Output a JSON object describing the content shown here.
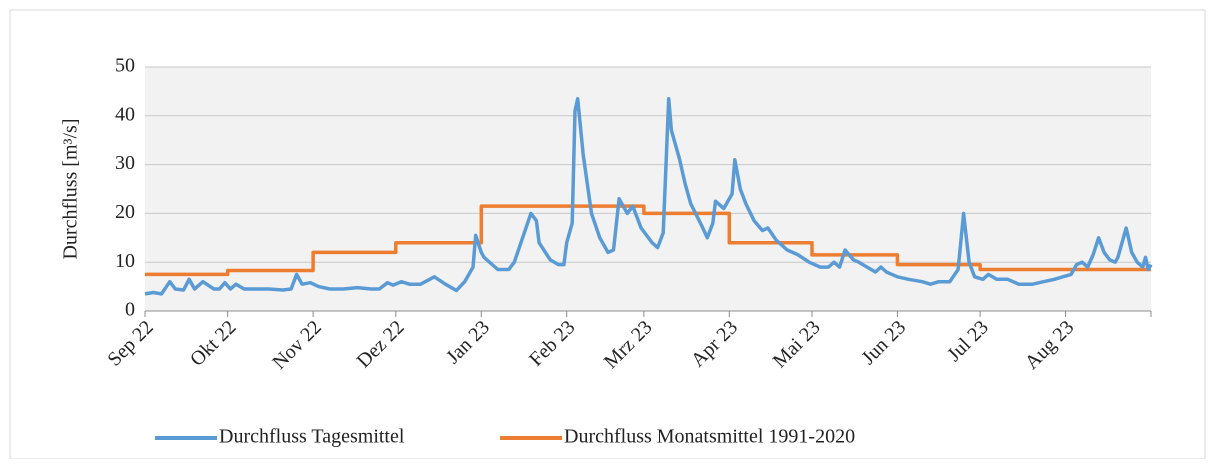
{
  "chart_data": {
    "type": "line",
    "y_label": "Durchfluss [m³/s]",
    "xlim": [
      0,
      365
    ],
    "xticks": [
      {
        "value": 0,
        "label": "Sep 22"
      },
      {
        "value": 30,
        "label": "Okt 22"
      },
      {
        "value": 61,
        "label": "Nov 22"
      },
      {
        "value": 91,
        "label": "Dez 22"
      },
      {
        "value": 122,
        "label": "Jan 23"
      },
      {
        "value": 153,
        "label": "Feb 23"
      },
      {
        "value": 181,
        "label": "Mrz 23"
      },
      {
        "value": 212,
        "label": "Apr 23"
      },
      {
        "value": 242,
        "label": "Mai 23"
      },
      {
        "value": 273,
        "label": "Jun 23"
      },
      {
        "value": 303,
        "label": "Jul 23"
      },
      {
        "value": 334,
        "label": "Aug 23"
      },
      365
    ],
    "ylim": [
      0,
      50
    ],
    "yticks": [
      0,
      10,
      20,
      30,
      40,
      50
    ],
    "grid": true,
    "legend": "bottom",
    "series": [
      {
        "name": "Durchfluss Tagesmittel",
        "color": "#5b9bd5",
        "x": [
          0,
          3,
          6,
          9,
          11,
          14,
          16,
          18,
          21,
          25,
          27,
          29,
          31,
          33,
          36,
          40,
          45,
          50,
          53,
          55,
          57,
          60,
          63,
          67,
          72,
          77,
          82,
          85,
          88,
          90,
          93,
          96,
          100,
          105,
          109,
          113,
          116,
          119,
          120,
          122,
          123,
          128,
          132,
          134,
          137,
          140,
          142,
          143,
          147,
          150,
          152,
          153,
          155,
          156,
          157,
          159,
          162,
          165,
          168,
          170,
          172,
          175,
          177,
          180,
          184,
          186,
          188,
          190,
          191,
          194,
          196,
          198,
          202,
          204,
          206,
          207,
          210,
          213,
          214,
          216,
          218,
          221,
          224,
          226,
          229,
          233,
          237,
          241,
          245,
          248,
          250,
          252,
          254,
          257,
          259,
          262,
          265,
          267,
          269,
          273,
          277,
          282,
          285,
          288,
          292,
          295,
          297,
          299,
          301,
          304,
          306,
          309,
          313,
          317,
          322,
          326,
          330,
          333,
          336,
          338,
          340,
          342,
          344,
          346,
          348,
          350,
          352,
          353,
          356,
          358,
          360,
          362,
          363,
          364,
          365
        ],
        "values": [
          3.5,
          3.8,
          3.5,
          6,
          4.5,
          4.3,
          6.5,
          4.5,
          6,
          4.5,
          4.5,
          5.8,
          4.5,
          5.5,
          4.5,
          4.5,
          4.5,
          4.3,
          4.5,
          7.5,
          5.5,
          5.8,
          5,
          4.5,
          4.5,
          4.8,
          4.5,
          4.5,
          5.8,
          5.3,
          6,
          5.5,
          5.5,
          7,
          5.5,
          4.2,
          6,
          9,
          15.5,
          12,
          11,
          8.5,
          8.5,
          10,
          15,
          20,
          18.5,
          14,
          10.5,
          9.5,
          9.5,
          14,
          18,
          41,
          43.5,
          32,
          20,
          15,
          12,
          12.5,
          23,
          20,
          21.5,
          17,
          14,
          13,
          16,
          43.5,
          37,
          31,
          26,
          22,
          17.5,
          15,
          18,
          22.5,
          21,
          24,
          31,
          25,
          22,
          18.5,
          16.5,
          17,
          14.5,
          12.5,
          11.5,
          10,
          9,
          9,
          10,
          9,
          12.5,
          10.5,
          10,
          9,
          8,
          9,
          8,
          7,
          6.5,
          6,
          5.5,
          6,
          6,
          8.5,
          20,
          10,
          7,
          6.5,
          7.5,
          6.5,
          6.5,
          5.5,
          5.5,
          6,
          6.5,
          7,
          7.5,
          9.5,
          10,
          9,
          11.5,
          15,
          12,
          10.5,
          10,
          11,
          17,
          12,
          10,
          9,
          11,
          8.5,
          9.5
        ]
      },
      {
        "name": "Durchfluss Monatsmittel 1991-2020",
        "color": "#ed7d31",
        "x": [
          0,
          30,
          30,
          61,
          61,
          91,
          91,
          122,
          122,
          153,
          153,
          181,
          181,
          212,
          212,
          242,
          242,
          273,
          273,
          303,
          303,
          334,
          334,
          365
        ],
        "values": [
          7.5,
          7.5,
          8.3,
          8.3,
          12,
          12,
          14,
          14,
          21.5,
          21.5,
          21.5,
          21.5,
          20,
          20,
          14,
          14,
          11.5,
          11.5,
          9.5,
          9.5,
          8.5,
          8.5,
          8.5,
          8.5
        ]
      }
    ]
  }
}
